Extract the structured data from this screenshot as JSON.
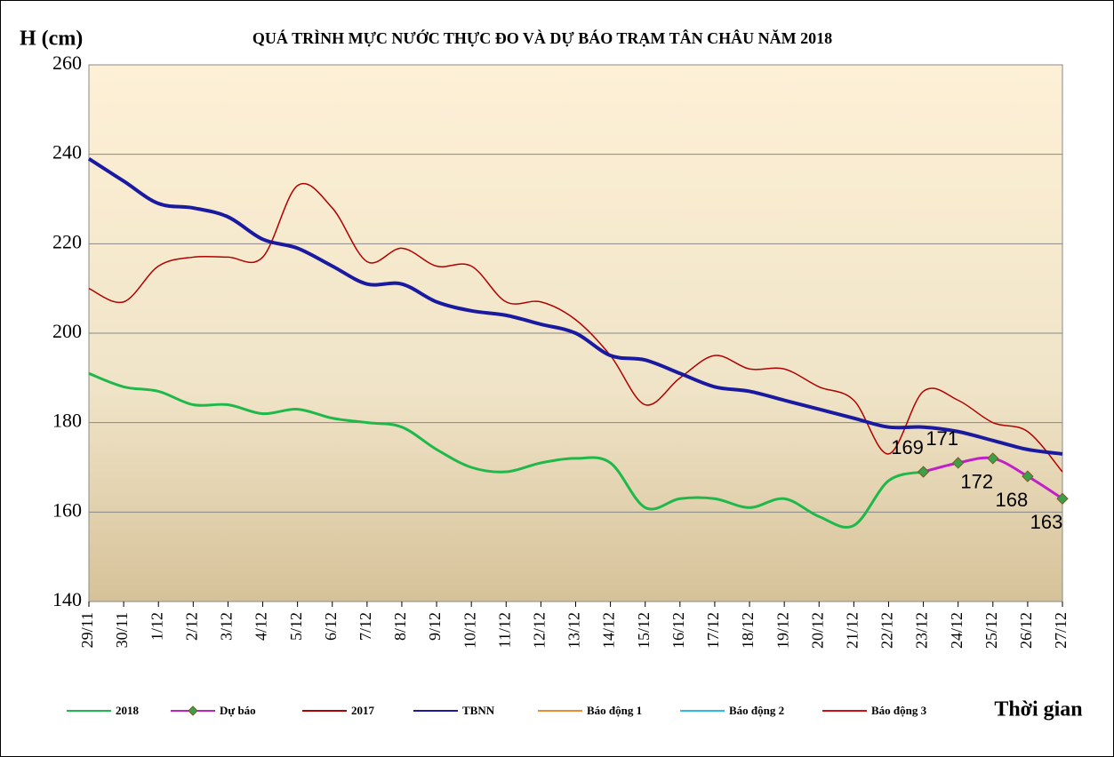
{
  "chart_data": {
    "type": "line",
    "title": "QUÁ TRÌNH MỰC NƯỚC THỰC ĐO VÀ DỰ BÁO TRẠM TÂN CHÂU NĂM 2018",
    "y_label": "H (cm)",
    "x_label": "Thời gian",
    "categories": [
      "29/11",
      "30/11",
      "1/12",
      "2/12",
      "3/12",
      "4/12",
      "5/12",
      "6/12",
      "7/12",
      "8/12",
      "9/12",
      "10/12",
      "11/12",
      "12/12",
      "13/12",
      "14/12",
      "15/12",
      "16/12",
      "17/12",
      "18/12",
      "19/12",
      "20/12",
      "21/12",
      "22/12",
      "23/12",
      "24/12",
      "25/12",
      "26/12",
      "27/12"
    ],
    "ylim": [
      140,
      260
    ],
    "yticks": [
      140,
      160,
      180,
      200,
      220,
      240,
      260
    ],
    "grid": true,
    "series": [
      {
        "name": "2018",
        "color": "#1fb84a",
        "width": 3,
        "values": [
          191,
          188,
          187,
          184,
          184,
          182,
          183,
          181,
          180,
          179,
          174,
          170,
          169,
          171,
          172,
          171,
          161,
          163,
          163,
          161,
          163,
          159,
          157,
          167,
          169,
          null,
          null,
          null,
          null
        ]
      },
      {
        "name": "Dự báo",
        "color": "#c020c8",
        "width": 3,
        "markers": true,
        "values": [
          null,
          null,
          null,
          null,
          null,
          null,
          null,
          null,
          null,
          null,
          null,
          null,
          null,
          null,
          null,
          null,
          null,
          null,
          null,
          null,
          null,
          null,
          null,
          null,
          169,
          171,
          172,
          168,
          163
        ]
      },
      {
        "name": "2017",
        "color": "#b00000",
        "width": 1.5,
        "values": [
          210,
          207,
          215,
          217,
          217,
          217,
          233,
          228,
          216,
          219,
          215,
          215,
          207,
          207,
          203,
          195,
          184,
          190,
          195,
          192,
          192,
          188,
          185,
          173,
          187,
          185,
          180,
          178,
          169
        ]
      },
      {
        "name": "TBNN",
        "color": "#1a1aa0",
        "width": 4,
        "values": [
          239,
          234,
          229,
          228,
          226,
          221,
          219,
          215,
          211,
          211,
          207,
          205,
          204,
          202,
          200,
          195,
          194,
          191,
          188,
          187,
          185,
          183,
          181,
          179,
          179,
          178,
          176,
          174,
          173
        ]
      },
      {
        "name": "Báo động 1",
        "color": "#f28b30"
      },
      {
        "name": "Báo động 2",
        "color": "#2dbce6"
      },
      {
        "name": "Báo động 3",
        "color": "#d01010"
      }
    ]
  }
}
